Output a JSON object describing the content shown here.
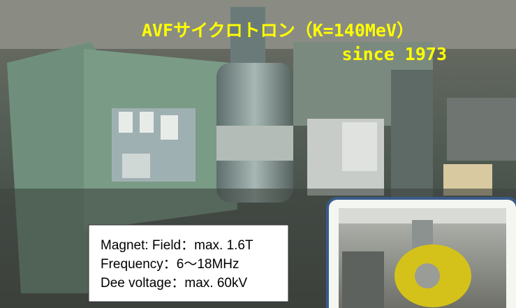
{
  "caption": {
    "title": "AVFサイクロトロン（K=140MeV）",
    "subtitle": "since 1973"
  },
  "specs": [
    "Magnet: Field：max. 1.6T",
    "Frequency：6～18MHz",
    "Dee voltage：max. 60kV"
  ]
}
